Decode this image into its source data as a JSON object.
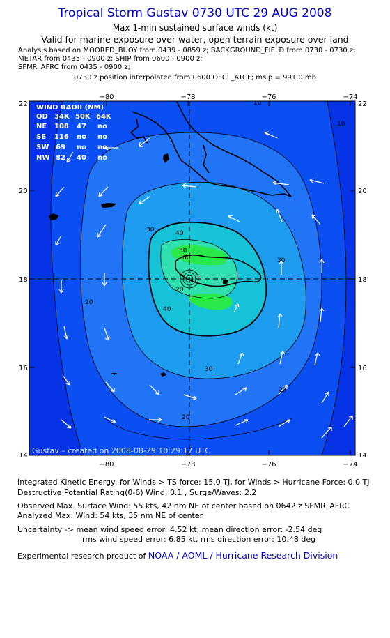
{
  "header": {
    "title": "Tropical Storm Gustav 0730 UTC 29 AUG 2008",
    "subtitle": "Max 1-min sustained surface winds (kt)",
    "valid": "Valid for marine exposure over water, open terrain exposure over land",
    "analysis_lines": [
      "Analysis based on  MOORED_BUOY from 0439 - 0859 z;  BACKGROUND_FIELD from 0730 - 0730 z;",
      "METAR from 0435 - 0900 z;  SHIP from 0600 - 0900 z;",
      "SFMR_AFRC from 0435 - 0900 z;"
    ],
    "position_note": "0730 z position interpolated from 0600 OFCL_ATCF; mslp = 991.0 mb"
  },
  "map": {
    "x_ticks": [
      "−80",
      "−78",
      "−76",
      "−74"
    ],
    "y_ticks": [
      "22",
      "20",
      "18",
      "16",
      "14"
    ],
    "lon_range": [
      -81.8,
      -73.8
    ],
    "lat_range": [
      14,
      22
    ],
    "center": {
      "lon": -78,
      "lat": 18
    },
    "contour_labels": [
      "10",
      "10",
      "20",
      "20",
      "20",
      "20",
      "30",
      "30",
      "30",
      "40",
      "40",
      "50",
      "60"
    ],
    "wind_radii": {
      "title": "WIND RADII (NM)",
      "header": [
        "QD",
        "34K",
        "50K",
        "64K"
      ],
      "rows": [
        [
          "NE",
          "108",
          "47",
          "no"
        ],
        [
          "SE",
          "116",
          "no",
          "no"
        ],
        [
          "SW",
          "69",
          "no",
          "no"
        ],
        [
          "NW",
          "82",
          "40",
          "no"
        ]
      ]
    },
    "created_label": "Gustav – created on 2008-08-29 10:29:17 UTC",
    "colors": {
      "outer": "#0633e6",
      "band10": "#0b4ef2",
      "band20": "#2274f7",
      "band30": "#1d9cf0",
      "band40": "#15c2d8",
      "band50": "#2ee0b0",
      "band60": "#29e84a",
      "land": "#000000"
    }
  },
  "footer": {
    "ike": "Integrated Kinetic Energy:  for Winds > TS force: 15.0 TJ,  for Winds > Hurricane Force: 0.0 TJ",
    "dpr": "Destructive Potential Rating(0-6)   Wind: 0.1 , Surge/Waves: 2.2",
    "obs": "Observed Max. Surface Wind: 55 kts, 42 nm NE of center based on 0642 z SFMR_AFRC",
    "analyzed": "Analyzed Max. Wind: 54 kts, 35 nm NE of center",
    "uncert1": "Uncertainty -> mean wind speed error: 4.52 kt,   mean direction error:  -2.54 deg",
    "uncert2": "rms wind speed error: 6.85 kt,   rms direction error: 10.48 deg",
    "credit_prefix": "Experimental research product of",
    "credit_org": "NOAA / AOML / Hurricane Research Division"
  }
}
